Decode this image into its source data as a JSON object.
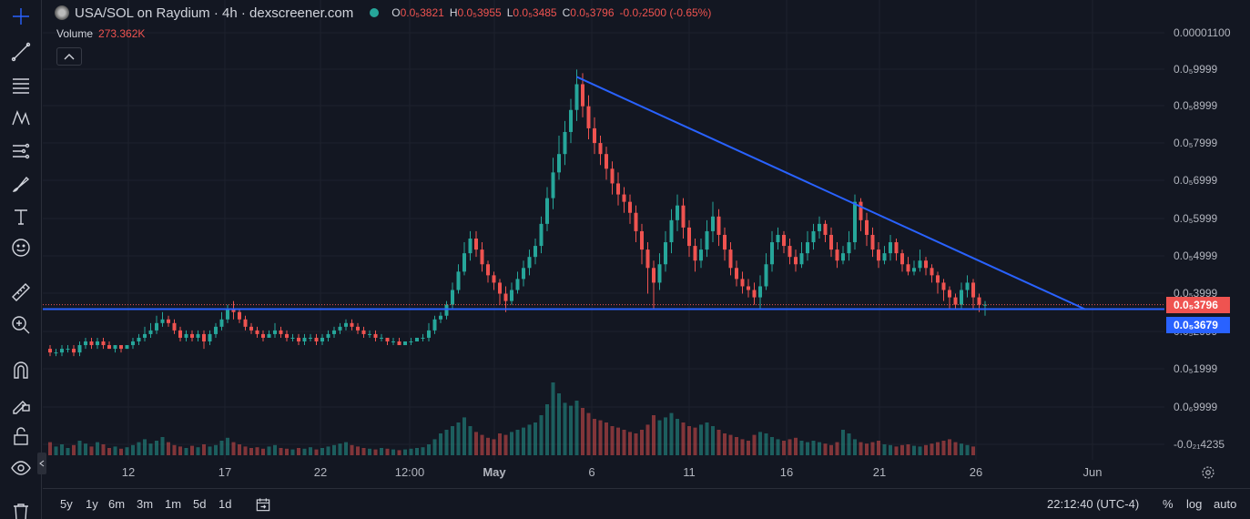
{
  "header": {
    "symbol_title": "USA/SOL on Raydium · 4h · dexscreener.com",
    "ohlc": [
      {
        "k": "O",
        "v": "0.0₅3821"
      },
      {
        "k": "H",
        "v": "0.0₅3955"
      },
      {
        "k": "L",
        "v": "0.0₅3485"
      },
      {
        "k": "C",
        "v": "0.0₅3796"
      },
      {
        "k": "",
        "v": "-0.0₇2500 (-0.65%)"
      }
    ]
  },
  "volume": {
    "label": "Volume",
    "value": "273.362K"
  },
  "price_axis": {
    "labels": [
      "0.00001100",
      "0.0₅9999",
      "0.0₅8999",
      "0.0₅7999",
      "0.0₅6999",
      "0.0₅5999",
      "0.0₅4999",
      "0.0₅3999",
      "0.0₅2999",
      "0.0₅1999",
      "0.0₆9999",
      "-0.0₂₁4235"
    ],
    "current_price": "0.0₅3796",
    "support_price": "0.0₅3679"
  },
  "time_axis": {
    "labels": [
      "12",
      "17",
      "22",
      "12:00",
      "May",
      "6",
      "11",
      "16",
      "21",
      "26",
      "Jun"
    ]
  },
  "bottom_bar": {
    "ranges": [
      "5y",
      "1y",
      "6m",
      "3m",
      "1m",
      "5d",
      "1d"
    ],
    "clock": "22:12:40 (UTC-4)",
    "percent": "%",
    "log": "log",
    "auto": "auto"
  },
  "colors": {
    "up": "#26a69a",
    "down": "#ef5350",
    "trendline": "#2962ff",
    "background": "#131722"
  },
  "chart_data": {
    "type": "candlestick",
    "title": "",
    "candles": [
      [
        2.6e-06,
        2.5e-06,
        2.7e-06,
        2.4e-06
      ],
      [
        2.5e-06,
        2.5e-06,
        2.6e-06,
        2.4e-06
      ],
      [
        2.5e-06,
        2.6e-06,
        2.7e-06,
        2.4e-06
      ],
      [
        2.6e-06,
        2.6e-06,
        2.7e-06,
        2.5e-06
      ],
      [
        2.6e-06,
        2.5e-06,
        2.7e-06,
        2.4e-06
      ],
      [
        2.5e-06,
        2.7e-06,
        2.8e-06,
        2.4e-06
      ],
      [
        2.7e-06,
        2.8e-06,
        2.9e-06,
        2.6e-06
      ],
      [
        2.8e-06,
        2.7e-06,
        2.9e-06,
        2.6e-06
      ],
      [
        2.7e-06,
        2.8e-06,
        2.9e-06,
        2.6e-06
      ],
      [
        2.8e-06,
        2.7e-06,
        2.9e-06,
        2.6e-06
      ],
      [
        2.7e-06,
        2.6e-06,
        2.8e-06,
        2.6e-06
      ],
      [
        2.6e-06,
        2.7e-06,
        2.7e-06,
        2.5e-06
      ],
      [
        2.7e-06,
        2.6e-06,
        2.7e-06,
        2.5e-06
      ],
      [
        2.6e-06,
        2.7e-06,
        2.7e-06,
        2.6e-06
      ],
      [
        2.7e-06,
        2.8e-06,
        2.9e-06,
        2.6e-06
      ],
      [
        2.8e-06,
        2.9e-06,
        3e-06,
        2.7e-06
      ],
      [
        2.9e-06,
        3e-06,
        3.2e-06,
        2.8e-06
      ],
      [
        3e-06,
        3.1e-06,
        3.3e-06,
        2.9e-06
      ],
      [
        3.1e-06,
        3.3e-06,
        3.5e-06,
        3e-06
      ],
      [
        3.3e-06,
        3.4e-06,
        3.6e-06,
        3.2e-06
      ],
      [
        3.4e-06,
        3.3e-06,
        3.5e-06,
        3.2e-06
      ],
      [
        3.3e-06,
        3.1e-06,
        3.4e-06,
        3e-06
      ],
      [
        3.1e-06,
        2.9e-06,
        3.2e-06,
        2.8e-06
      ],
      [
        2.9e-06,
        3e-06,
        3.1e-06,
        2.8e-06
      ],
      [
        3e-06,
        2.9e-06,
        3.1e-06,
        2.8e-06
      ],
      [
        2.9e-06,
        3e-06,
        3.1e-06,
        2.8e-06
      ],
      [
        3e-06,
        2.8e-06,
        3.1e-06,
        2.6e-06
      ],
      [
        2.8e-06,
        3e-06,
        3.1e-06,
        2.7e-06
      ],
      [
        3e-06,
        3.2e-06,
        3.3e-06,
        2.9e-06
      ],
      [
        3.2e-06,
        3.4e-06,
        3.6e-06,
        3.1e-06
      ],
      [
        3.4e-06,
        3.7e-06,
        3.8e-06,
        3.3e-06
      ],
      [
        3.7e-06,
        3.6e-06,
        3.9e-06,
        3.4e-06
      ],
      [
        3.6e-06,
        3.4e-06,
        3.7e-06,
        3.3e-06
      ],
      [
        3.4e-06,
        3.2e-06,
        3.5e-06,
        3.1e-06
      ],
      [
        3.2e-06,
        3.1e-06,
        3.3e-06,
        3e-06
      ],
      [
        3.1e-06,
        3e-06,
        3.2e-06,
        2.9e-06
      ],
      [
        3e-06,
        2.9e-06,
        3.1e-06,
        2.8e-06
      ],
      [
        2.9e-06,
        3e-06,
        3.1e-06,
        2.9e-06
      ],
      [
        3e-06,
        3.1e-06,
        3.3e-06,
        2.9e-06
      ],
      [
        3.1e-06,
        3e-06,
        3.2e-06,
        2.9e-06
      ],
      [
        3e-06,
        2.9e-06,
        3.1e-06,
        2.8e-06
      ],
      [
        2.9e-06,
        2.9e-06,
        3e-06,
        2.8e-06
      ],
      [
        2.9e-06,
        2.8e-06,
        3e-06,
        2.7e-06
      ],
      [
        2.8e-06,
        2.9e-06,
        3e-06,
        2.7e-06
      ],
      [
        2.9e-06,
        2.9e-06,
        3e-06,
        2.8e-06
      ],
      [
        2.9e-06,
        2.8e-06,
        3e-06,
        2.7e-06
      ],
      [
        2.8e-06,
        2.9e-06,
        3e-06,
        2.7e-06
      ],
      [
        2.9e-06,
        3e-06,
        3.1e-06,
        2.8e-06
      ],
      [
        3e-06,
        3.1e-06,
        3.2e-06,
        2.9e-06
      ],
      [
        3.1e-06,
        3.2e-06,
        3.3e-06,
        3e-06
      ],
      [
        3.2e-06,
        3.3e-06,
        3.4e-06,
        3.1e-06
      ],
      [
        3.3e-06,
        3.2e-06,
        3.4e-06,
        3.1e-06
      ],
      [
        3.2e-06,
        3.1e-06,
        3.3e-06,
        3e-06
      ],
      [
        3.1e-06,
        3e-06,
        3.2e-06,
        2.9e-06
      ],
      [
        3e-06,
        3e-06,
        3.1e-06,
        2.9e-06
      ],
      [
        3e-06,
        2.9e-06,
        3.1e-06,
        2.8e-06
      ],
      [
        2.9e-06,
        2.9e-06,
        3e-06,
        2.8e-06
      ],
      [
        2.9e-06,
        2.8e-06,
        2.9e-06,
        2.7e-06
      ],
      [
        2.8e-06,
        2.8e-06,
        2.9e-06,
        2.7e-06
      ],
      [
        2.8e-06,
        2.7e-06,
        2.9e-06,
        2.7e-06
      ],
      [
        2.7e-06,
        2.8e-06,
        2.8e-06,
        2.7e-06
      ],
      [
        2.8e-06,
        2.8e-06,
        2.9e-06,
        2.7e-06
      ],
      [
        2.8e-06,
        2.9e-06,
        2.9e-06,
        2.8e-06
      ],
      [
        2.9e-06,
        2.9e-06,
        3e-06,
        2.8e-06
      ],
      [
        2.9e-06,
        3.1e-06,
        3.3e-06,
        2.8e-06
      ],
      [
        3.1e-06,
        3.4e-06,
        3.5e-06,
        3e-06
      ],
      [
        3.4e-06,
        3.5e-06,
        3.6e-06,
        3.3e-06
      ],
      [
        3.5e-06,
        3.8e-06,
        3.9e-06,
        3.4e-06
      ],
      [
        3.8e-06,
        4.2e-06,
        4.4e-06,
        3.7e-06
      ],
      [
        4.2e-06,
        4.7e-06,
        4.9e-06,
        4.1e-06
      ],
      [
        4.7e-06,
        5.2e-06,
        5.5e-06,
        4.6e-06
      ],
      [
        5.2e-06,
        5.6e-06,
        5.8e-06,
        5e-06
      ],
      [
        5.6e-06,
        5.3e-06,
        5.8e-06,
        5.1e-06
      ],
      [
        5.3e-06,
        4.9e-06,
        5.5e-06,
        4.7e-06
      ],
      [
        4.9e-06,
        4.6e-06,
        5e-06,
        4.4e-06
      ],
      [
        4.6e-06,
        4.4e-06,
        4.7e-06,
        4.2e-06
      ],
      [
        4.4e-06,
        4.1e-06,
        4.5e-06,
        3.8e-06
      ],
      [
        4.1e-06,
        3.9e-06,
        4.3e-06,
        3.6e-06
      ],
      [
        3.9e-06,
        4.2e-06,
        4.4e-06,
        3.8e-06
      ],
      [
        4.2e-06,
        4.5e-06,
        4.7e-06,
        4.1e-06
      ],
      [
        4.5e-06,
        4.8e-06,
        5e-06,
        4.3e-06
      ],
      [
        4.8e-06,
        5.1e-06,
        5.3e-06,
        4.6e-06
      ],
      [
        5.1e-06,
        5.4e-06,
        5.6e-06,
        4.9e-06
      ],
      [
        5.4e-06,
        6e-06,
        6.2e-06,
        5.2e-06
      ],
      [
        6e-06,
        6.7e-06,
        7e-06,
        5.8e-06
      ],
      [
        6.7e-06,
        7.4e-06,
        7.8e-06,
        6.4e-06
      ],
      [
        7.4e-06,
        7.9e-06,
        8.4e-06,
        7.2e-06
      ],
      [
        7.9e-06,
        8.5e-06,
        8.8e-06,
        7.6e-06
      ],
      [
        8.5e-06,
        9.1e-06,
        9.4e-06,
        8.2e-06
      ],
      [
        9.1e-06,
        9.8e-06,
        1.02e-05,
        8.8e-06
      ],
      [
        9.8e-06,
        9.2e-06,
        1.01e-05,
        8.9e-06
      ],
      [
        9.2e-06,
        8.6e-06,
        9.5e-06,
        8.3e-06
      ],
      [
        8.6e-06,
        8.2e-06,
        8.9e-06,
        7.9e-06
      ],
      [
        8.2e-06,
        7.9e-06,
        8.4e-06,
        7.6e-06
      ],
      [
        7.9e-06,
        7.5e-06,
        8.1e-06,
        7.2e-06
      ],
      [
        7.5e-06,
        7.1e-06,
        7.7e-06,
        6.8e-06
      ],
      [
        7.1e-06,
        6.8e-06,
        7.4e-06,
        6.5e-06
      ],
      [
        6.8e-06,
        6.6e-06,
        7e-06,
        6.3e-06
      ],
      [
        6.6e-06,
        6.3e-06,
        6.8e-06,
        6e-06
      ],
      [
        6.3e-06,
        5.8e-06,
        6.5e-06,
        5.5e-06
      ],
      [
        5.8e-06,
        5.3e-06,
        6e-06,
        4.9e-06
      ],
      [
        5.3e-06,
        4.8e-06,
        5.5e-06,
        4.1e-06
      ],
      [
        4.8e-06,
        4.4e-06,
        5e-06,
        3.7e-06
      ],
      [
        4.4e-06,
        4.9e-06,
        5.2e-06,
        4.2e-06
      ],
      [
        4.9e-06,
        5.5e-06,
        5.8e-06,
        4.7e-06
      ],
      [
        5.5e-06,
        6.1e-06,
        6.4e-06,
        5.2e-06
      ],
      [
        6.1e-06,
        6.5e-06,
        6.8e-06,
        5.8e-06
      ],
      [
        6.5e-06,
        5.9e-06,
        6.7e-06,
        5.6e-06
      ],
      [
        5.9e-06,
        5.4e-06,
        6.1e-06,
        5.1e-06
      ],
      [
        5.4e-06,
        5e-06,
        5.6e-06,
        4.7e-06
      ],
      [
        5e-06,
        5.3e-06,
        5.6e-06,
        4.8e-06
      ],
      [
        5.3e-06,
        5.8e-06,
        6.1e-06,
        5.1e-06
      ],
      [
        5.8e-06,
        6.2e-06,
        6.6e-06,
        5.5e-06
      ],
      [
        6.2e-06,
        5.7e-06,
        6.4e-06,
        5.4e-06
      ],
      [
        5.7e-06,
        5.3e-06,
        5.9e-06,
        5e-06
      ],
      [
        5.3e-06,
        4.8e-06,
        5.5e-06,
        4.6e-06
      ],
      [
        4.8e-06,
        4.5e-06,
        5e-06,
        4.3e-06
      ],
      [
        4.5e-06,
        4.3e-06,
        4.7e-06,
        4.1e-06
      ],
      [
        4.3e-06,
        4.2e-06,
        4.5e-06,
        4e-06
      ],
      [
        4.2e-06,
        4e-06,
        4.4e-06,
        3.8e-06
      ],
      [
        4e-06,
        4.3e-06,
        4.6e-06,
        3.7e-06
      ],
      [
        4.3e-06,
        4.9e-06,
        5.2e-06,
        4.2e-06
      ],
      [
        4.9e-06,
        5.5e-06,
        5.8e-06,
        4.7e-06
      ],
      [
        5.5e-06,
        5.7e-06,
        5.9e-06,
        5.3e-06
      ],
      [
        5.7e-06,
        5.4e-06,
        5.8e-06,
        5.2e-06
      ],
      [
        5.4e-06,
        5.1e-06,
        5.6e-06,
        4.9e-06
      ],
      [
        5.1e-06,
        4.9e-06,
        5.3e-06,
        4.7e-06
      ],
      [
        4.9e-06,
        5.2e-06,
        5.5e-06,
        4.8e-06
      ],
      [
        5.2e-06,
        5.5e-06,
        5.8e-06,
        5e-06
      ],
      [
        5.5e-06,
        5.8e-06,
        6e-06,
        5.3e-06
      ],
      [
        5.8e-06,
        6e-06,
        6.2e-06,
        5.6e-06
      ],
      [
        6e-06,
        5.7e-06,
        6.1e-06,
        5.5e-06
      ],
      [
        5.7e-06,
        5.3e-06,
        5.9e-06,
        5.1e-06
      ],
      [
        5.3e-06,
        5e-06,
        5.5e-06,
        4.8e-06
      ],
      [
        5e-06,
        5.2e-06,
        5.4e-06,
        4.9e-06
      ],
      [
        5.2e-06,
        5.5e-06,
        5.8e-06,
        5e-06
      ],
      [
        5.5e-06,
        6.6e-06,
        6.8e-06,
        5.3e-06
      ],
      [
        6.6e-06,
        6.1e-06,
        6.7e-06,
        5.8e-06
      ],
      [
        6.1e-06,
        5.7e-06,
        6.3e-06,
        5.4e-06
      ],
      [
        5.7e-06,
        5.3e-06,
        5.9e-06,
        5.1e-06
      ],
      [
        5.3e-06,
        5e-06,
        5.5e-06,
        4.8e-06
      ],
      [
        5e-06,
        5.2e-06,
        5.4e-06,
        4.9e-06
      ],
      [
        5.2e-06,
        5.5e-06,
        5.7e-06,
        5e-06
      ],
      [
        5.5e-06,
        5.2e-06,
        5.6e-06,
        5e-06
      ],
      [
        5.2e-06,
        4.9e-06,
        5.3e-06,
        4.7e-06
      ],
      [
        4.9e-06,
        4.7e-06,
        5.1e-06,
        4.6e-06
      ],
      [
        4.7e-06,
        4.8e-06,
        5e-06,
        4.6e-06
      ],
      [
        4.8e-06,
        5e-06,
        5.3e-06,
        4.7e-06
      ],
      [
        5e-06,
        4.8e-06,
        5.1e-06,
        4.6e-06
      ],
      [
        4.8e-06,
        4.6e-06,
        4.9e-06,
        4.4e-06
      ],
      [
        4.6e-06,
        4.4e-06,
        4.7e-06,
        4.1e-06
      ],
      [
        4.4e-06,
        4.2e-06,
        4.5e-06,
        3.9e-06
      ],
      [
        4.2e-06,
        4e-06,
        4.3e-06,
        3.7e-06
      ],
      [
        4e-06,
        3.8e-06,
        4.1e-06,
        3.7e-06
      ],
      [
        3.8e-06,
        4.2e-06,
        4.4e-06,
        3.7e-06
      ],
      [
        4.2e-06,
        4.4e-06,
        4.6e-06,
        4e-06
      ],
      [
        4.4e-06,
        4e-06,
        4.5e-06,
        3.7e-06
      ],
      [
        4e-06,
        3.8e-06,
        4.1e-06,
        3.6e-06
      ],
      [
        3.8e-06,
        3.8e-06,
        3.9e-06,
        3.5e-06
      ]
    ],
    "volumes": [
      0.18,
      0.12,
      0.15,
      0.1,
      0.14,
      0.2,
      0.16,
      0.12,
      0.18,
      0.15,
      0.1,
      0.12,
      0.09,
      0.11,
      0.14,
      0.18,
      0.22,
      0.16,
      0.2,
      0.25,
      0.18,
      0.14,
      0.12,
      0.1,
      0.13,
      0.11,
      0.15,
      0.12,
      0.14,
      0.2,
      0.24,
      0.18,
      0.15,
      0.12,
      0.1,
      0.11,
      0.09,
      0.12,
      0.14,
      0.1,
      0.09,
      0.08,
      0.1,
      0.09,
      0.11,
      0.08,
      0.1,
      0.12,
      0.14,
      0.16,
      0.18,
      0.14,
      0.12,
      0.1,
      0.09,
      0.08,
      0.1,
      0.09,
      0.08,
      0.07,
      0.08,
      0.09,
      0.1,
      0.11,
      0.15,
      0.22,
      0.3,
      0.35,
      0.4,
      0.45,
      0.52,
      0.4,
      0.32,
      0.28,
      0.24,
      0.22,
      0.3,
      0.28,
      0.32,
      0.35,
      0.38,
      0.42,
      0.45,
      0.55,
      0.7,
      1.0,
      0.85,
      0.72,
      0.68,
      0.75,
      0.65,
      0.58,
      0.5,
      0.48,
      0.45,
      0.4,
      0.38,
      0.35,
      0.32,
      0.3,
      0.35,
      0.42,
      0.55,
      0.48,
      0.52,
      0.58,
      0.5,
      0.45,
      0.4,
      0.38,
      0.42,
      0.45,
      0.4,
      0.35,
      0.3,
      0.28,
      0.25,
      0.22,
      0.2,
      0.28,
      0.32,
      0.3,
      0.25,
      0.22,
      0.2,
      0.22,
      0.24,
      0.2,
      0.18,
      0.2,
      0.18,
      0.16,
      0.14,
      0.18,
      0.35,
      0.3,
      0.22,
      0.18,
      0.16,
      0.18,
      0.2,
      0.15,
      0.14,
      0.12,
      0.14,
      0.15,
      0.13,
      0.12,
      0.14,
      0.16,
      0.18,
      0.2,
      0.22,
      0.18,
      0.16,
      0.14,
      0.12
    ],
    "ylim": [
      0.0,
      1.12e-05
    ],
    "trendline": {
      "from_index": 89,
      "from_price": 1e-05,
      "to_index": 175,
      "to_price": 3.67e-06
    },
    "support_line": 3.679e-06,
    "current_price_line": 3.8e-06
  }
}
